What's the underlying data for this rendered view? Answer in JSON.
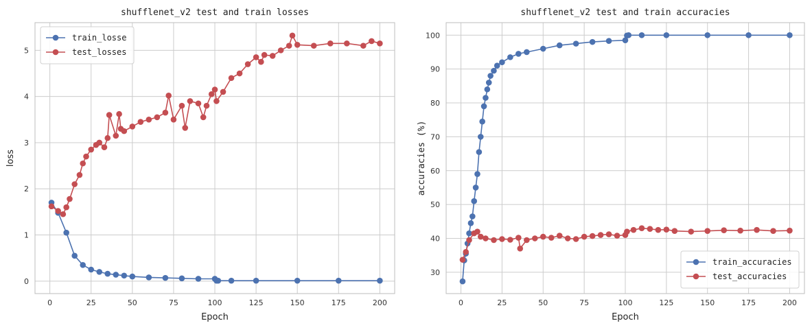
{
  "chart_data": [
    {
      "type": "line",
      "title": "shufflenet_v2 test and train losses",
      "xlabel": "Epoch",
      "ylabel": "loss",
      "xlim": [
        -9,
        209
      ],
      "ylim": [
        -0.27,
        5.6
      ],
      "xticks": [
        0,
        25,
        50,
        75,
        100,
        125,
        150,
        175,
        200
      ],
      "yticks": [
        0,
        1,
        2,
        3,
        4,
        5
      ],
      "grid": true,
      "legend_position": "top-left",
      "series": [
        {
          "name": "train_losse",
          "color": "#4c72b0",
          "x": [
            1,
            5,
            10,
            15,
            20,
            25,
            30,
            35,
            40,
            45,
            50,
            60,
            70,
            80,
            90,
            100,
            101,
            102,
            110,
            125,
            150,
            175,
            200
          ],
          "y": [
            1.7,
            1.48,
            1.05,
            0.55,
            0.35,
            0.25,
            0.2,
            0.16,
            0.14,
            0.12,
            0.1,
            0.08,
            0.07,
            0.06,
            0.05,
            0.05,
            0.01,
            0.01,
            0.01,
            0.01,
            0.01,
            0.01,
            0.01
          ]
        },
        {
          "name": "test_losses",
          "color": "#c44e52",
          "x": [
            1,
            5,
            8,
            10,
            12,
            15,
            18,
            20,
            22,
            25,
            28,
            30,
            33,
            35,
            36,
            40,
            42,
            43,
            45,
            50,
            55,
            60,
            65,
            70,
            72,
            75,
            80,
            82,
            85,
            90,
            93,
            95,
            98,
            100,
            101,
            105,
            110,
            115,
            120,
            125,
            128,
            130,
            135,
            140,
            145,
            147,
            150,
            160,
            170,
            180,
            190,
            195,
            200
          ],
          "y": [
            1.62,
            1.52,
            1.45,
            1.6,
            1.78,
            2.1,
            2.3,
            2.55,
            2.7,
            2.85,
            2.95,
            3.0,
            2.9,
            3.1,
            3.6,
            3.15,
            3.62,
            3.3,
            3.25,
            3.35,
            3.45,
            3.5,
            3.55,
            3.65,
            4.02,
            3.5,
            3.8,
            3.32,
            3.9,
            3.85,
            3.55,
            3.8,
            4.05,
            4.15,
            3.9,
            4.1,
            4.4,
            4.5,
            4.7,
            4.85,
            4.75,
            4.9,
            4.88,
            5.0,
            5.1,
            5.32,
            5.12,
            5.1,
            5.15,
            5.15,
            5.1,
            5.2,
            5.15
          ]
        }
      ]
    },
    {
      "type": "line",
      "title": "shufflenet_v2 test and train accuracies",
      "xlabel": "Epoch",
      "ylabel": "accuracies (%)",
      "xlim": [
        -9,
        209
      ],
      "ylim": [
        23.7,
        103.7
      ],
      "xticks": [
        0,
        25,
        50,
        75,
        100,
        125,
        150,
        175,
        200
      ],
      "yticks": [
        30,
        40,
        50,
        60,
        70,
        80,
        90,
        100
      ],
      "grid": true,
      "legend_position": "bottom-right",
      "series": [
        {
          "name": "train_accuracies",
          "color": "#4c72b0",
          "x": [
            1,
            2,
            3,
            4,
            5,
            6,
            7,
            8,
            9,
            10,
            11,
            12,
            13,
            14,
            15,
            16,
            17,
            18,
            20,
            22,
            25,
            30,
            35,
            40,
            50,
            60,
            70,
            80,
            90,
            100,
            101,
            102,
            110,
            125,
            150,
            175,
            200
          ],
          "y": [
            27.3,
            33.5,
            35.5,
            38.5,
            41.5,
            44.5,
            46.5,
            51,
            55,
            59,
            65.5,
            70,
            74.5,
            79,
            81.5,
            84,
            86,
            88,
            89.5,
            91,
            92,
            93.5,
            94.5,
            95,
            96,
            97,
            97.5,
            98,
            98.3,
            98.5,
            99.9,
            100,
            100,
            100,
            100,
            100,
            100
          ]
        },
        {
          "name": "test_accuracies",
          "color": "#c44e52",
          "x": [
            1,
            3,
            5,
            8,
            10,
            12,
            15,
            20,
            25,
            30,
            35,
            36,
            40,
            45,
            50,
            55,
            60,
            65,
            70,
            75,
            80,
            85,
            90,
            95,
            100,
            101,
            105,
            110,
            115,
            120,
            125,
            130,
            140,
            150,
            160,
            170,
            180,
            190,
            200
          ],
          "y": [
            33.7,
            36,
            39.5,
            41.5,
            42,
            40.5,
            40,
            39.5,
            39.8,
            39.6,
            40.2,
            37,
            39.5,
            40,
            40.5,
            40.2,
            40.8,
            40,
            39.8,
            40.5,
            40.7,
            41,
            41.2,
            40.8,
            41,
            42,
            42.5,
            43,
            42.8,
            42.5,
            42.6,
            42.2,
            42,
            42.2,
            42.4,
            42.3,
            42.5,
            42.2,
            42.3
          ]
        }
      ]
    }
  ]
}
